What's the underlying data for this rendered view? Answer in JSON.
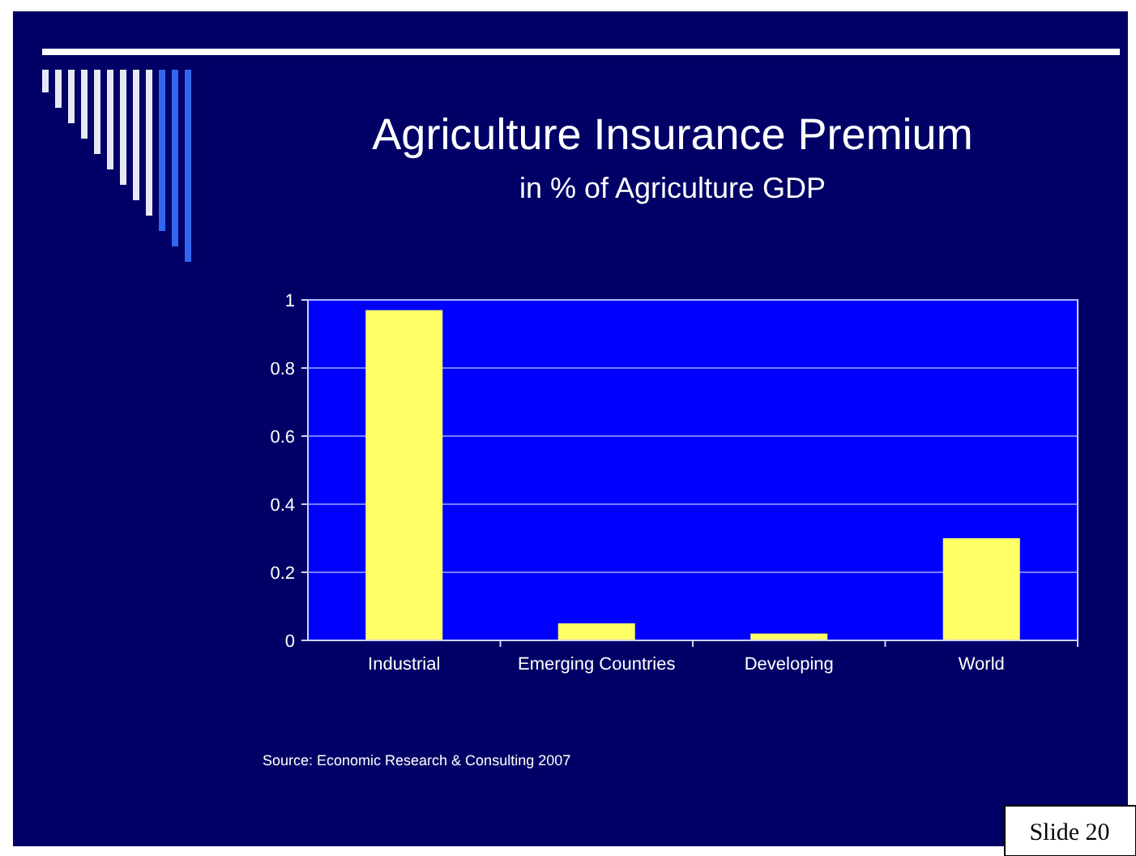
{
  "chart_data": {
    "type": "bar",
    "title": "Agriculture Insurance Premium",
    "subtitle": "in % of Agriculture GDP",
    "categories": [
      "Industrial",
      "Emerging Countries",
      "Developing",
      "World"
    ],
    "values": [
      0.97,
      0.05,
      0.02,
      0.3
    ],
    "color": "#ffff66",
    "ylim": [
      0,
      1
    ],
    "yticks": [
      0,
      0.2,
      0.4,
      0.6,
      0.8,
      1
    ],
    "grid": "y",
    "annotations": [
      "Source: Economic Research & Consulting 2007",
      "Slide 20"
    ]
  }
}
